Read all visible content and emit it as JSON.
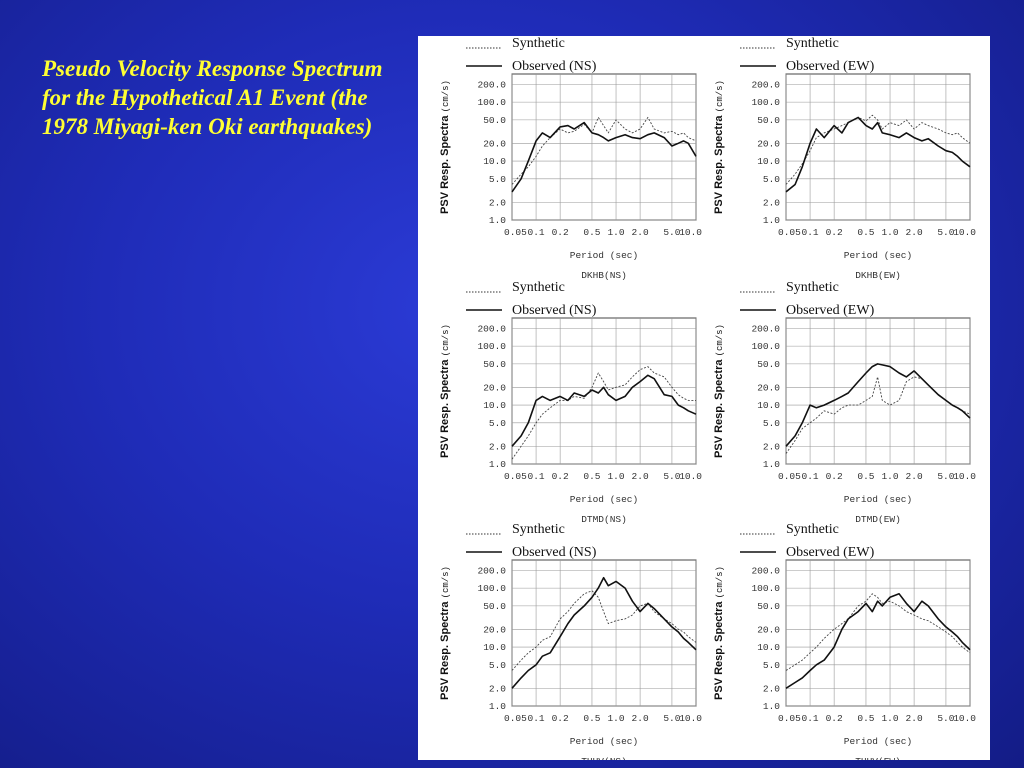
{
  "slide": {
    "title": "Pseudo Velocity Response Spectrum for the Hypothetical A1 Event (the 1978 Miyagi-ken Oki earthquakes)"
  },
  "common": {
    "ylabel_main": "PSV Resp. Spectra",
    "ylabel_unit": "(cm/s)",
    "xlabel": "Period (sec)",
    "legend_synthetic": "Synthetic",
    "yticks": [
      "200.0",
      "100.0",
      "50.0",
      "20.0",
      "10.0",
      "5.0",
      "2.0",
      "1.0"
    ],
    "xticks": [
      "0.05",
      "0.1",
      "0.2",
      "0.5",
      "1.0",
      "2.0",
      "5.0",
      "10.0"
    ],
    "colors": {
      "title": "#ffff33",
      "background": "#1f2cb8",
      "panel": "#ffffff",
      "grid": "#999999"
    }
  },
  "chart_data": [
    {
      "type": "line",
      "station": "DKHB(NS)",
      "legend_observed": "Observed (NS)",
      "x_scale": "log",
      "y_scale": "log",
      "xlim": [
        0.05,
        10.0
      ],
      "ylim": [
        1.0,
        300.0
      ],
      "grid": true,
      "xlabel": "Period (sec)",
      "ylabel": "PSV Resp. Spectra (cm/s)",
      "series": [
        {
          "name": "Synthetic",
          "style": "dotted",
          "x": [
            0.05,
            0.065,
            0.08,
            0.1,
            0.12,
            0.15,
            0.2,
            0.25,
            0.3,
            0.4,
            0.5,
            0.6,
            0.7,
            0.8,
            1.0,
            1.3,
            1.6,
            2.0,
            2.5,
            3.0,
            4.0,
            5.0,
            6.0,
            7.0,
            8.0,
            10.0
          ],
          "y": [
            4,
            6,
            8,
            12,
            18,
            25,
            35,
            30,
            32,
            42,
            30,
            55,
            40,
            30,
            50,
            35,
            30,
            35,
            55,
            35,
            30,
            32,
            28,
            30,
            25,
            22
          ]
        },
        {
          "name": "Observed (NS)",
          "style": "solid",
          "x": [
            0.05,
            0.065,
            0.08,
            0.1,
            0.12,
            0.15,
            0.2,
            0.25,
            0.3,
            0.4,
            0.5,
            0.6,
            0.7,
            0.8,
            1.0,
            1.3,
            1.6,
            2.0,
            2.5,
            3.0,
            4.0,
            5.0,
            6.0,
            7.0,
            8.0,
            10.0
          ],
          "y": [
            3,
            5,
            10,
            22,
            30,
            25,
            38,
            40,
            35,
            45,
            30,
            28,
            25,
            22,
            25,
            28,
            25,
            24,
            28,
            30,
            25,
            18,
            20,
            22,
            20,
            12
          ]
        }
      ]
    },
    {
      "type": "line",
      "station": "DKHB(EW)",
      "legend_observed": "Observed (EW)",
      "x_scale": "log",
      "y_scale": "log",
      "xlim": [
        0.05,
        10.0
      ],
      "ylim": [
        1.0,
        300.0
      ],
      "grid": true,
      "xlabel": "Period (sec)",
      "ylabel": "PSV Resp. Spectra (cm/s)",
      "series": [
        {
          "name": "Synthetic",
          "style": "dotted",
          "x": [
            0.05,
            0.065,
            0.08,
            0.1,
            0.12,
            0.15,
            0.2,
            0.25,
            0.3,
            0.4,
            0.5,
            0.6,
            0.7,
            0.8,
            1.0,
            1.3,
            1.6,
            2.0,
            2.5,
            3.0,
            4.0,
            5.0,
            6.0,
            7.0,
            8.0,
            10.0
          ],
          "y": [
            4,
            6,
            9,
            15,
            25,
            30,
            35,
            40,
            45,
            55,
            48,
            60,
            50,
            35,
            45,
            40,
            50,
            35,
            45,
            40,
            35,
            30,
            28,
            30,
            25,
            20
          ]
        },
        {
          "name": "Observed (EW)",
          "style": "solid",
          "x": [
            0.05,
            0.065,
            0.08,
            0.1,
            0.12,
            0.15,
            0.2,
            0.25,
            0.3,
            0.4,
            0.5,
            0.6,
            0.7,
            0.8,
            1.0,
            1.3,
            1.6,
            2.0,
            2.5,
            3.0,
            4.0,
            5.0,
            6.0,
            7.0,
            8.0,
            10.0
          ],
          "y": [
            3,
            4,
            8,
            20,
            35,
            25,
            40,
            30,
            45,
            55,
            40,
            35,
            45,
            30,
            28,
            25,
            30,
            25,
            22,
            24,
            18,
            15,
            14,
            12,
            10,
            8
          ]
        }
      ]
    },
    {
      "type": "line",
      "station": "DTMD(NS)",
      "legend_observed": "Observed (NS)",
      "x_scale": "log",
      "y_scale": "log",
      "xlim": [
        0.05,
        10.0
      ],
      "ylim": [
        1.0,
        300.0
      ],
      "grid": true,
      "xlabel": "Period (sec)",
      "ylabel": "PSV Resp. Spectra (cm/s)",
      "series": [
        {
          "name": "Synthetic",
          "style": "dotted",
          "x": [
            0.05,
            0.065,
            0.08,
            0.1,
            0.12,
            0.15,
            0.2,
            0.25,
            0.3,
            0.4,
            0.5,
            0.6,
            0.7,
            0.8,
            1.0,
            1.3,
            1.6,
            2.0,
            2.5,
            3.0,
            4.0,
            5.0,
            6.0,
            7.0,
            8.0,
            10.0
          ],
          "y": [
            1.2,
            2,
            3,
            5,
            7,
            9,
            12,
            12,
            14,
            13,
            20,
            35,
            25,
            18,
            20,
            22,
            30,
            40,
            45,
            35,
            30,
            20,
            15,
            13,
            12,
            12
          ]
        },
        {
          "name": "Observed (NS)",
          "style": "solid",
          "x": [
            0.05,
            0.065,
            0.08,
            0.1,
            0.12,
            0.15,
            0.2,
            0.25,
            0.3,
            0.4,
            0.5,
            0.6,
            0.7,
            0.8,
            1.0,
            1.3,
            1.6,
            2.0,
            2.5,
            3.0,
            4.0,
            5.0,
            6.0,
            7.0,
            8.0,
            10.0
          ],
          "y": [
            2,
            3,
            5,
            12,
            14,
            12,
            14,
            12,
            16,
            14,
            18,
            16,
            20,
            15,
            12,
            14,
            20,
            25,
            32,
            28,
            15,
            14,
            10,
            9,
            8,
            7
          ]
        }
      ]
    },
    {
      "type": "line",
      "station": "DTMD(EW)",
      "legend_observed": "Observed (EW)",
      "x_scale": "log",
      "y_scale": "log",
      "xlim": [
        0.05,
        10.0
      ],
      "ylim": [
        1.0,
        300.0
      ],
      "grid": true,
      "xlabel": "Period (sec)",
      "ylabel": "PSV Resp. Spectra (cm/s)",
      "series": [
        {
          "name": "Synthetic",
          "style": "dotted",
          "x": [
            0.05,
            0.065,
            0.08,
            0.1,
            0.12,
            0.15,
            0.2,
            0.25,
            0.3,
            0.4,
            0.5,
            0.6,
            0.7,
            0.8,
            1.0,
            1.3,
            1.6,
            2.0,
            2.5,
            3.0,
            4.0,
            5.0,
            6.0,
            7.0,
            8.0,
            10.0
          ],
          "y": [
            1.5,
            2.5,
            4,
            5,
            6,
            8,
            7,
            9,
            10,
            10,
            12,
            14,
            30,
            12,
            10,
            12,
            25,
            30,
            28,
            22,
            15,
            12,
            10,
            9,
            8,
            7
          ]
        },
        {
          "name": "Observed (EW)",
          "style": "solid",
          "x": [
            0.05,
            0.065,
            0.08,
            0.1,
            0.12,
            0.15,
            0.2,
            0.25,
            0.3,
            0.4,
            0.5,
            0.6,
            0.7,
            0.8,
            1.0,
            1.3,
            1.6,
            2.0,
            2.5,
            3.0,
            4.0,
            5.0,
            6.0,
            7.0,
            8.0,
            10.0
          ],
          "y": [
            2,
            3,
            5,
            10,
            9,
            10,
            12,
            14,
            16,
            25,
            35,
            45,
            50,
            48,
            45,
            35,
            30,
            38,
            28,
            22,
            15,
            12,
            10,
            9,
            8,
            6
          ]
        }
      ]
    },
    {
      "type": "line",
      "station": "THUV(NS)",
      "legend_observed": "Observed (NS)",
      "x_scale": "log",
      "y_scale": "log",
      "xlim": [
        0.05,
        10.0
      ],
      "ylim": [
        1.0,
        300.0
      ],
      "grid": true,
      "xlabel": "Period (sec)",
      "ylabel": "PSV Resp. Spectra (cm/s)",
      "series": [
        {
          "name": "Synthetic",
          "style": "dotted",
          "x": [
            0.05,
            0.065,
            0.08,
            0.1,
            0.12,
            0.15,
            0.2,
            0.25,
            0.3,
            0.4,
            0.5,
            0.6,
            0.7,
            0.8,
            1.0,
            1.3,
            1.6,
            2.0,
            2.5,
            3.0,
            4.0,
            5.0,
            6.0,
            7.0,
            8.0,
            10.0
          ],
          "y": [
            4,
            6,
            8,
            10,
            13,
            15,
            30,
            40,
            55,
            80,
            90,
            70,
            40,
            25,
            28,
            30,
            35,
            50,
            55,
            40,
            30,
            25,
            20,
            18,
            15,
            12
          ]
        },
        {
          "name": "Observed (NS)",
          "style": "solid",
          "x": [
            0.05,
            0.065,
            0.08,
            0.1,
            0.12,
            0.15,
            0.2,
            0.25,
            0.3,
            0.4,
            0.5,
            0.6,
            0.7,
            0.8,
            1.0,
            1.3,
            1.6,
            2.0,
            2.5,
            3.0,
            4.0,
            5.0,
            6.0,
            7.0,
            8.0,
            10.0
          ],
          "y": [
            2,
            3,
            4,
            5,
            7,
            8,
            15,
            25,
            35,
            50,
            70,
            100,
            150,
            110,
            130,
            100,
            60,
            40,
            55,
            45,
            30,
            22,
            18,
            14,
            12,
            9
          ]
        }
      ]
    },
    {
      "type": "line",
      "station": "THUV(EW)",
      "legend_observed": "Observed (EW)",
      "x_scale": "log",
      "y_scale": "log",
      "xlim": [
        0.05,
        10.0
      ],
      "ylim": [
        1.0,
        300.0
      ],
      "grid": true,
      "xlabel": "Period (sec)",
      "ylabel": "PSV Resp. Spectra (cm/s)",
      "series": [
        {
          "name": "Synthetic",
          "style": "dotted",
          "x": [
            0.05,
            0.065,
            0.08,
            0.1,
            0.12,
            0.15,
            0.2,
            0.25,
            0.3,
            0.4,
            0.5,
            0.6,
            0.7,
            0.8,
            1.0,
            1.3,
            1.6,
            2.0,
            2.5,
            3.0,
            4.0,
            5.0,
            6.0,
            7.0,
            8.0,
            10.0
          ],
          "y": [
            4,
            5,
            6,
            8,
            10,
            14,
            20,
            25,
            30,
            50,
            60,
            80,
            70,
            55,
            60,
            50,
            40,
            35,
            30,
            28,
            22,
            18,
            15,
            12,
            10,
            8
          ]
        },
        {
          "name": "Observed (EW)",
          "style": "solid",
          "x": [
            0.05,
            0.065,
            0.08,
            0.1,
            0.12,
            0.15,
            0.2,
            0.25,
            0.3,
            0.4,
            0.5,
            0.6,
            0.7,
            0.8,
            1.0,
            1.3,
            1.6,
            2.0,
            2.5,
            3.0,
            4.0,
            5.0,
            6.0,
            7.0,
            8.0,
            10.0
          ],
          "y": [
            2,
            2.5,
            3,
            4,
            5,
            6,
            10,
            20,
            30,
            40,
            55,
            40,
            60,
            50,
            70,
            80,
            55,
            40,
            60,
            50,
            30,
            22,
            18,
            15,
            12,
            9
          ]
        }
      ]
    }
  ]
}
